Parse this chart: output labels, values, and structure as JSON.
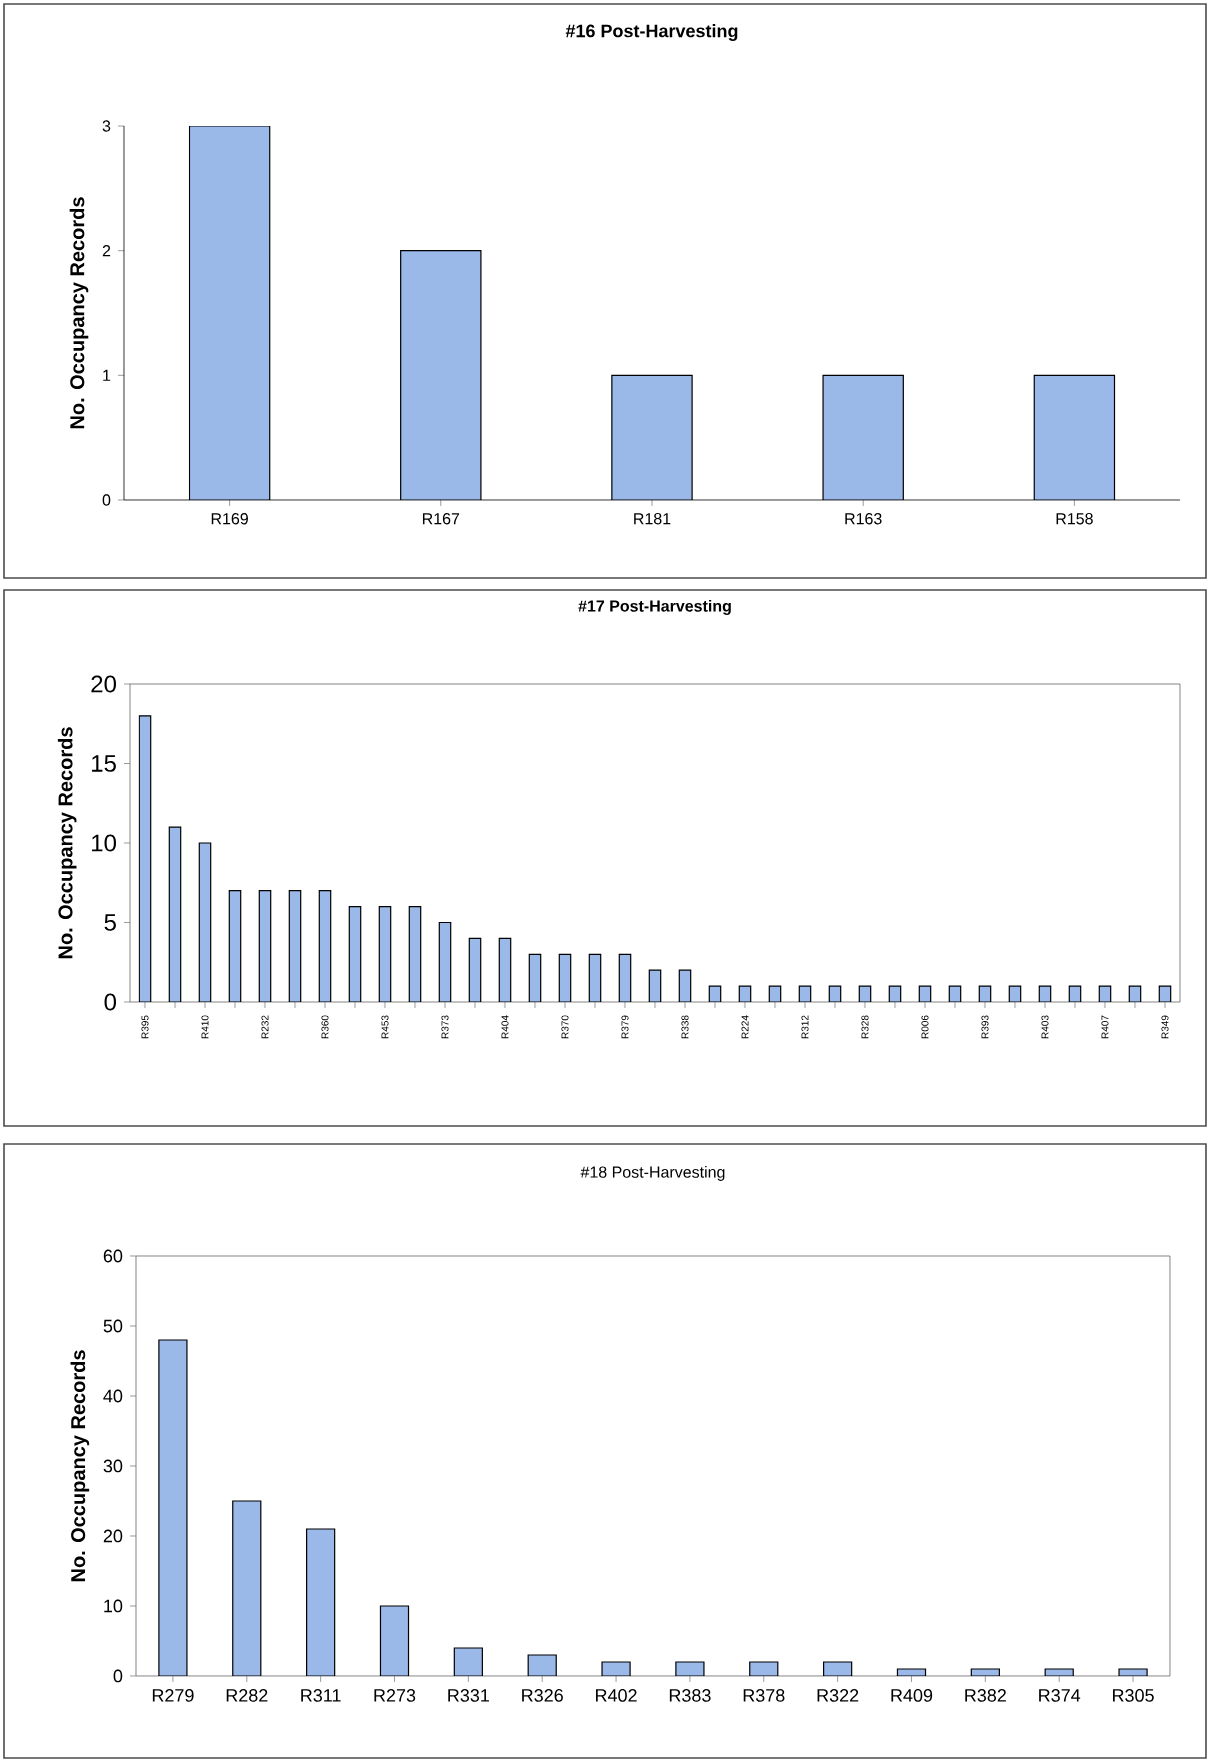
{
  "chart_data": [
    {
      "type": "bar",
      "title": "#16 Post-Harvesting",
      "ylabel": "No. Occupancy Records",
      "categories": [
        "R169",
        "R167",
        "R181",
        "R163",
        "R158"
      ],
      "values": [
        3,
        2,
        1,
        1,
        1
      ],
      "color": "#9ab8e8",
      "ylim": [
        0,
        3
      ],
      "yticks": [
        0,
        1,
        2,
        3
      ]
    },
    {
      "type": "bar",
      "title": "#17 Post-Harvesting",
      "ylabel": "No. Occupancy Records",
      "categories": [
        "R395",
        null,
        "R410",
        null,
        "R232",
        null,
        "R360",
        null,
        "R453",
        null,
        "R373",
        null,
        "R404",
        null,
        "R370",
        null,
        "R379",
        null,
        "R338",
        null,
        "R224",
        null,
        "R312",
        null,
        "R328",
        null,
        "R006",
        null,
        "R393",
        null,
        "R403",
        null,
        "R407",
        null,
        "R349"
      ],
      "values": [
        18,
        11,
        10,
        7,
        7,
        7,
        7,
        6,
        6,
        6,
        5,
        4,
        4,
        3,
        3,
        3,
        3,
        2,
        2,
        1,
        1,
        1,
        1,
        1,
        1,
        1,
        1,
        1,
        1,
        1,
        1,
        1,
        1,
        1,
        1
      ],
      "color": "#9ab8e8",
      "ylim": [
        0,
        20
      ],
      "yticks": [
        0,
        5,
        10,
        15,
        20
      ]
    },
    {
      "type": "bar",
      "title": "#18 Post-Harvesting",
      "ylabel": "No. Occupancy Records",
      "categories": [
        "R279",
        "R282",
        "R311",
        "R273",
        "R331",
        "R326",
        "R402",
        "R383",
        "R378",
        "R322",
        "R409",
        "R382",
        "R374",
        "R305"
      ],
      "values": [
        48,
        25,
        21,
        10,
        4,
        3,
        2,
        2,
        2,
        2,
        1,
        1,
        1,
        1
      ],
      "color": "#9ab8e8",
      "ylim": [
        0,
        60
      ],
      "yticks": [
        0,
        10,
        20,
        30,
        40,
        50,
        60
      ]
    }
  ]
}
